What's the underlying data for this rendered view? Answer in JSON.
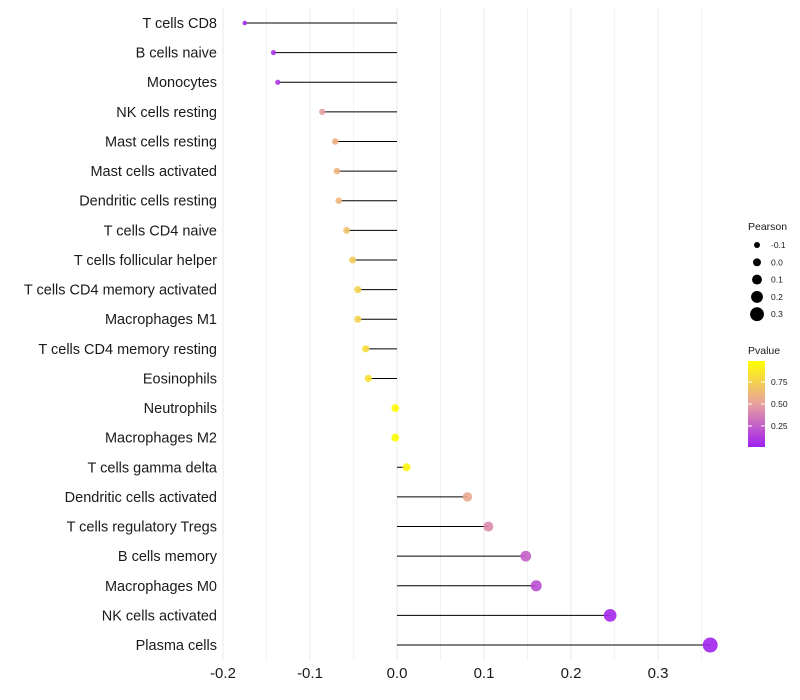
{
  "chart_data": {
    "type": "lollipop",
    "categories": [
      "T cells CD8",
      "B cells naive",
      "Monocytes",
      "NK cells resting",
      "Mast cells resting",
      "Mast cells activated",
      "Dendritic cells resting",
      "T cells CD4 naive",
      "T cells follicular helper",
      "T cells CD4 memory activated",
      "Macrophages M1",
      "T cells CD4 memory resting",
      "Eosinophils",
      "Neutrophils",
      "Macrophages M2",
      "T cells gamma delta",
      "Dendritic cells activated",
      "T cells regulatory  Tregs",
      "B cells memory",
      "Macrophages M0",
      "NK cells activated",
      "Plasma cells"
    ],
    "values": [
      -0.175,
      -0.142,
      -0.137,
      -0.086,
      -0.071,
      -0.069,
      -0.067,
      -0.058,
      -0.051,
      -0.045,
      -0.045,
      -0.036,
      -0.033,
      -0.002,
      -0.002,
      0.011,
      0.081,
      0.105,
      0.148,
      0.16,
      0.245,
      0.36
    ],
    "pvalues": [
      0.03,
      0.07,
      0.09,
      0.5,
      0.58,
      0.6,
      0.62,
      0.68,
      0.72,
      0.76,
      0.76,
      0.82,
      0.84,
      0.99,
      0.99,
      0.95,
      0.55,
      0.42,
      0.25,
      0.18,
      0.03,
      0.01
    ],
    "xlim": [
      -0.2,
      0.36
    ],
    "xticks": [
      "-0.2",
      "-0.1",
      "0.0",
      "0.1",
      "0.2",
      "0.3"
    ],
    "xtick_values": [
      -0.2,
      -0.1,
      0.0,
      0.1,
      0.2,
      0.3
    ],
    "xlabel": "",
    "ylabel": "",
    "title": "",
    "legend": {
      "position": "right",
      "size_title": "Pearson",
      "size_labels": [
        "-0.1",
        "0.0",
        "0.1",
        "0.2",
        "0.3"
      ],
      "size_values": [
        -0.1,
        0.0,
        0.1,
        0.2,
        0.3
      ],
      "color_title": "Pvalue",
      "color_labels": [
        "0.75",
        "0.50",
        "0.25"
      ],
      "color_values": [
        0.75,
        0.5,
        0.25
      ],
      "color_low": "#a020f0",
      "color_mid": "#e8a0a0",
      "color_high": "#ffff00",
      "stem_color": "#000000",
      "grid_color": "#ebebeb"
    }
  }
}
